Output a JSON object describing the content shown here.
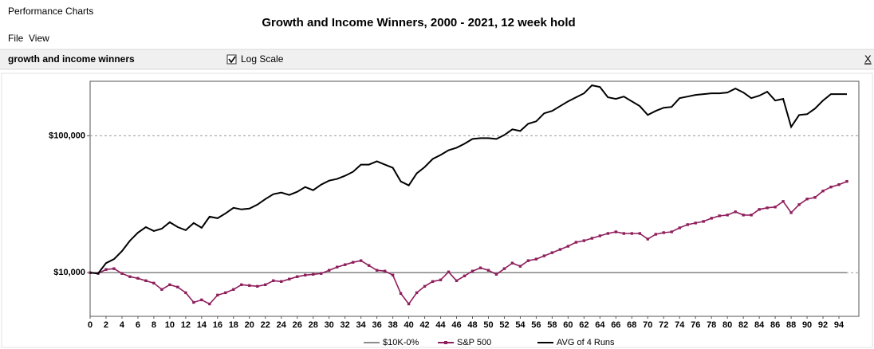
{
  "window": {
    "title": "Performance Charts"
  },
  "menu": [
    "File",
    "View"
  ],
  "toolbar": {
    "name": "growth and income winners",
    "log_scale_label": "Log Scale",
    "close": "X"
  },
  "chart_data": {
    "type": "line",
    "title": "Growth and Income Winners, 2000 - 2021, 12 week hold",
    "log_scale": true,
    "grid": true,
    "legend": "bottom",
    "x": [
      0,
      1,
      2,
      3,
      4,
      5,
      6,
      7,
      8,
      9,
      10,
      11,
      12,
      13,
      14,
      15,
      16,
      17,
      18,
      19,
      20,
      21,
      22,
      23,
      24,
      25,
      26,
      27,
      28,
      29,
      30,
      31,
      32,
      33,
      34,
      35,
      36,
      37,
      38,
      39,
      40,
      41,
      42,
      43,
      44,
      45,
      46,
      47,
      48,
      49,
      50,
      51,
      52,
      53,
      54,
      55,
      56,
      57,
      58,
      59,
      60,
      61,
      62,
      63,
      64,
      65,
      66,
      67,
      68,
      69,
      70,
      71,
      72,
      73,
      74,
      75,
      76,
      77,
      78,
      79,
      80,
      81,
      82,
      83,
      84,
      85,
      86,
      87,
      88,
      89,
      90,
      91,
      92,
      93,
      94,
      95
    ],
    "xlim": [
      0,
      96.5
    ],
    "xticks": [
      0,
      2,
      4,
      6,
      8,
      10,
      12,
      14,
      16,
      18,
      20,
      22,
      24,
      26,
      28,
      30,
      32,
      34,
      36,
      38,
      40,
      42,
      44,
      46,
      48,
      50,
      52,
      54,
      56,
      58,
      60,
      62,
      64,
      66,
      68,
      70,
      72,
      74,
      76,
      78,
      80,
      82,
      84,
      86,
      88,
      90,
      92,
      94
    ],
    "ylim": [
      4800,
      250000
    ],
    "yticks": [
      {
        "value": 10000,
        "label": "$10,000"
      },
      {
        "value": 100000,
        "label": "$100,000"
      }
    ],
    "series": [
      {
        "name": "$10K-0%",
        "color": "#8c8c8c",
        "markers": false,
        "values": [
          10000,
          10000,
          10000,
          10000,
          10000,
          10000,
          10000,
          10000,
          10000,
          10000,
          10000,
          10000,
          10000,
          10000,
          10000,
          10000,
          10000,
          10000,
          10000,
          10000,
          10000,
          10000,
          10000,
          10000,
          10000,
          10000,
          10000,
          10000,
          10000,
          10000,
          10000,
          10000,
          10000,
          10000,
          10000,
          10000,
          10000,
          10000,
          10000,
          10000,
          10000,
          10000,
          10000,
          10000,
          10000,
          10000,
          10000,
          10000,
          10000,
          10000,
          10000,
          10000,
          10000,
          10000,
          10000,
          10000,
          10000,
          10000,
          10000,
          10000,
          10000,
          10000,
          10000,
          10000,
          10000,
          10000,
          10000,
          10000,
          10000,
          10000,
          10000,
          10000,
          10000,
          10000,
          10000,
          10000,
          10000,
          10000,
          10000,
          10000,
          10000,
          10000,
          10000,
          10000,
          10000,
          10000,
          10000,
          10000,
          10000,
          10000,
          10000,
          10000,
          10000,
          10000,
          10000,
          10000
        ]
      },
      {
        "name": "S&P 500",
        "color": "#8e1f5c",
        "markers": true,
        "values": [
          10000,
          9870,
          10550,
          10700,
          9870,
          9350,
          9100,
          8740,
          8390,
          7540,
          8170,
          7850,
          7140,
          6070,
          6330,
          5910,
          6860,
          7140,
          7540,
          8170,
          8060,
          7950,
          8170,
          8740,
          8620,
          8980,
          9350,
          9600,
          9730,
          9870,
          10410,
          10990,
          11440,
          11910,
          12240,
          11290,
          10410,
          10270,
          9600,
          7050,
          5910,
          7140,
          7950,
          8620,
          8860,
          10130,
          8740,
          9470,
          10270,
          10840,
          10410,
          9730,
          10700,
          11750,
          11140,
          12240,
          12570,
          13270,
          14000,
          14780,
          15600,
          16680,
          17130,
          17840,
          18580,
          19340,
          19870,
          19340,
          19340,
          19340,
          17600,
          19080,
          19610,
          19870,
          21260,
          22440,
          23050,
          23670,
          24990,
          26020,
          26370,
          27830,
          26370,
          26370,
          28970,
          29760,
          30170,
          33150,
          27450,
          31410,
          34520,
          35460,
          39500,
          42240,
          43990,
          46420
        ]
      },
      {
        "name": "AVG of 4 Runs",
        "color": "#000000",
        "markers": false,
        "values": [
          10000,
          9870,
          11750,
          12570,
          14380,
          17130,
          19610,
          21540,
          20150,
          20970,
          23350,
          21540,
          20420,
          23050,
          21260,
          25670,
          24990,
          27090,
          29760,
          28970,
          29370,
          31410,
          34520,
          37420,
          38450,
          36920,
          38970,
          42240,
          40030,
          43990,
          47050,
          48330,
          51010,
          54560,
          61590,
          61590,
          65010,
          61590,
          58360,
          46420,
          43390,
          53100,
          59150,
          67680,
          72380,
          78460,
          81720,
          87390,
          94750,
          96050,
          96050,
          94750,
          101300,
          111400,
          108400,
          122400,
          127400,
          145800,
          151800,
          164600,
          178400,
          190900,
          204200,
          233500,
          227400,
          190900,
          185800,
          193400,
          178400,
          164600,
          141900,
          151800,
          160200,
          162400,
          188300,
          193400,
          198700,
          201500,
          204200,
          204200,
          207000,
          221300,
          207000,
          188300,
          196100,
          209700,
          180800,
          185800,
          116000,
          141900,
          143800,
          158100,
          180800,
          201500,
          201500,
          201500
        ]
      }
    ]
  }
}
